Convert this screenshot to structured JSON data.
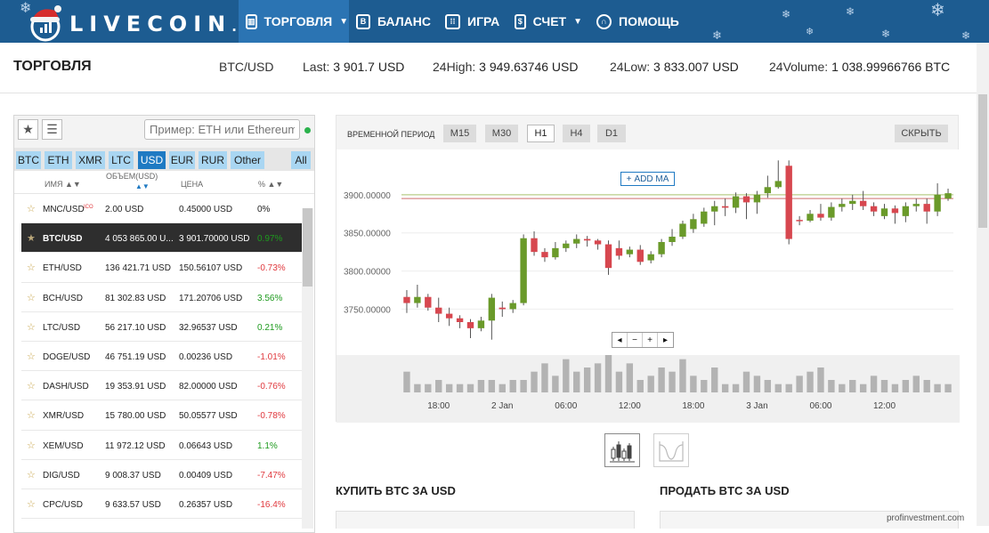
{
  "nav": {
    "logo_main": "LIVECOIN",
    "logo_suffix": ".NET",
    "items": [
      {
        "label": "ТОРГОВЛЯ",
        "icon": "chart-icon",
        "active": true
      },
      {
        "label": "БАЛАНС",
        "icon": "wallet-icon"
      },
      {
        "label": "ИГРА",
        "icon": "grid-icon"
      },
      {
        "label": "СЧЕТ",
        "icon": "account-icon"
      },
      {
        "label": "ПОМОЩЬ",
        "icon": "headset-icon"
      }
    ]
  },
  "infobar": {
    "title": "ТОРГОВЛЯ",
    "pair": "BTC/USD",
    "last_label": "Last:",
    "last_value": "3 901.7 USD",
    "high_label": "24High:",
    "high_value": "3 949.63746 USD",
    "low_label": "24Low:",
    "low_value": "3 833.007 USD",
    "volume_label": "24Volume:",
    "volume_value": "1 038.99966766 BTC"
  },
  "market": {
    "search_placeholder": "Пример: ETH или Ethereum",
    "tabs": [
      "BTC",
      "ETH",
      "XMR",
      "LTC",
      "USD",
      "EUR",
      "RUR",
      "Other",
      "All"
    ],
    "active_tab": "USD",
    "columns": {
      "name": "ИМЯ ▲▼",
      "volume": "ОБЪЕМ(USD)",
      "price": "ЦЕНА",
      "change": "% ▲▼"
    },
    "rows": [
      {
        "pair": "MNC/USD",
        "ico": "ICO",
        "volume": "2.00 USD",
        "price": "0.45000 USD",
        "change": "0%",
        "trend": "flat"
      },
      {
        "pair": "BTC/USD",
        "volume": "4 053 865.00 U...",
        "price": "3 901.70000 USD",
        "change": "0.97%",
        "trend": "pos",
        "selected": true
      },
      {
        "pair": "ETH/USD",
        "volume": "136 421.71 USD",
        "price": "150.56107 USD",
        "change": "-0.73%",
        "trend": "neg"
      },
      {
        "pair": "BCH/USD",
        "volume": "81 302.83 USD",
        "price": "171.20706 USD",
        "change": "3.56%",
        "trend": "pos"
      },
      {
        "pair": "LTC/USD",
        "volume": "56 217.10 USD",
        "price": "32.96537 USD",
        "change": "0.21%",
        "trend": "pos"
      },
      {
        "pair": "DOGE/USD",
        "volume": "46 751.19 USD",
        "price": "0.00236 USD",
        "change": "-1.01%",
        "trend": "neg"
      },
      {
        "pair": "DASH/USD",
        "volume": "19 353.91 USD",
        "price": "82.00000 USD",
        "change": "-0.76%",
        "trend": "neg"
      },
      {
        "pair": "XMR/USD",
        "volume": "15 780.00 USD",
        "price": "50.05577 USD",
        "change": "-0.78%",
        "trend": "neg"
      },
      {
        "pair": "XEM/USD",
        "volume": "11 972.12 USD",
        "price": "0.06643 USD",
        "change": "1.1%",
        "trend": "pos"
      },
      {
        "pair": "DIG/USD",
        "volume": "9 008.37 USD",
        "price": "0.00409 USD",
        "change": "-7.47%",
        "trend": "neg"
      },
      {
        "pair": "CPC/USD",
        "volume": "9 633.57 USD",
        "price": "0.26357 USD",
        "change": "-16.4%",
        "trend": "neg"
      }
    ]
  },
  "chart": {
    "period_label": "ВРЕМЕННОЙ ПЕРИОД",
    "periods": [
      "M15",
      "M30",
      "H1",
      "H4",
      "D1"
    ],
    "active_period": "H1",
    "hide_label": "СКРЫТЬ",
    "add_ma_label": "ADD MA",
    "zoom_controls": [
      "◂",
      "−",
      "+",
      "▸"
    ]
  },
  "chart_data": {
    "type": "candlestick",
    "y_ticks": [
      "3900.00000",
      "3850.00000",
      "3800.00000",
      "3750.00000"
    ],
    "y_tick_values": [
      3900,
      3850,
      3800,
      3750
    ],
    "ylim": [
      3705,
      3950
    ],
    "x_tick_labels": [
      "18:00",
      "2 Jan",
      "06:00",
      "12:00",
      "18:00",
      "3 Jan",
      "06:00",
      "12:00"
    ],
    "x_tick_index": [
      3,
      9,
      15,
      21,
      27,
      33,
      39,
      45
    ],
    "ma_levels": [
      3900,
      3895
    ],
    "candles": [
      {
        "o": 3766,
        "c": 3758,
        "h": 3775,
        "l": 3745
      },
      {
        "o": 3758,
        "c": 3766,
        "h": 3782,
        "l": 3752
      },
      {
        "o": 3766,
        "c": 3752,
        "h": 3770,
        "l": 3748
      },
      {
        "o": 3752,
        "c": 3744,
        "h": 3765,
        "l": 3733
      },
      {
        "o": 3744,
        "c": 3738,
        "h": 3752,
        "l": 3728
      },
      {
        "o": 3738,
        "c": 3733,
        "h": 3742,
        "l": 3725
      },
      {
        "o": 3733,
        "c": 3725,
        "h": 3737,
        "l": 3712
      },
      {
        "o": 3725,
        "c": 3735,
        "h": 3740,
        "l": 3721
      },
      {
        "o": 3735,
        "c": 3765,
        "h": 3770,
        "l": 3710
      },
      {
        "o": 3752,
        "c": 3750,
        "h": 3760,
        "l": 3740
      },
      {
        "o": 3750,
        "c": 3758,
        "h": 3762,
        "l": 3745
      },
      {
        "o": 3758,
        "c": 3843,
        "h": 3848,
        "l": 3755
      },
      {
        "o": 3843,
        "c": 3825,
        "h": 3852,
        "l": 3820
      },
      {
        "o": 3825,
        "c": 3818,
        "h": 3830,
        "l": 3812
      },
      {
        "o": 3818,
        "c": 3830,
        "h": 3838,
        "l": 3815
      },
      {
        "o": 3830,
        "c": 3836,
        "h": 3840,
        "l": 3825
      },
      {
        "o": 3836,
        "c": 3842,
        "h": 3848,
        "l": 3830
      },
      {
        "o": 3842,
        "c": 3840,
        "h": 3846,
        "l": 3832
      },
      {
        "o": 3840,
        "c": 3835,
        "h": 3842,
        "l": 3828
      },
      {
        "o": 3835,
        "c": 3804,
        "h": 3840,
        "l": 3795
      },
      {
        "o": 3830,
        "c": 3820,
        "h": 3840,
        "l": 3815
      },
      {
        "o": 3822,
        "c": 3828,
        "h": 3832,
        "l": 3818
      },
      {
        "o": 3828,
        "c": 3812,
        "h": 3834,
        "l": 3808
      },
      {
        "o": 3814,
        "c": 3822,
        "h": 3826,
        "l": 3810
      },
      {
        "o": 3822,
        "c": 3838,
        "h": 3842,
        "l": 3818
      },
      {
        "o": 3838,
        "c": 3845,
        "h": 3855,
        "l": 3833
      },
      {
        "o": 3845,
        "c": 3862,
        "h": 3866,
        "l": 3842
      },
      {
        "o": 3855,
        "c": 3868,
        "h": 3875,
        "l": 3850
      },
      {
        "o": 3862,
        "c": 3878,
        "h": 3883,
        "l": 3858
      },
      {
        "o": 3878,
        "c": 3885,
        "h": 3892,
        "l": 3860
      },
      {
        "o": 3885,
        "c": 3883,
        "h": 3895,
        "l": 3872
      },
      {
        "o": 3883,
        "c": 3898,
        "h": 3903,
        "l": 3876
      },
      {
        "o": 3898,
        "c": 3890,
        "h": 3902,
        "l": 3868
      },
      {
        "o": 3890,
        "c": 3900,
        "h": 3905,
        "l": 3875
      },
      {
        "o": 3902,
        "c": 3910,
        "h": 3925,
        "l": 3896
      },
      {
        "o": 3910,
        "c": 3918,
        "h": 3945,
        "l": 3908
      },
      {
        "o": 3938,
        "c": 3842,
        "h": 3945,
        "l": 3835
      },
      {
        "o": 3867,
        "c": 3866,
        "h": 3872,
        "l": 3860
      },
      {
        "o": 3866,
        "c": 3875,
        "h": 3880,
        "l": 3864
      },
      {
        "o": 3875,
        "c": 3870,
        "h": 3888,
        "l": 3866
      },
      {
        "o": 3870,
        "c": 3884,
        "h": 3890,
        "l": 3866
      },
      {
        "o": 3884,
        "c": 3888,
        "h": 3895,
        "l": 3878
      },
      {
        "o": 3888,
        "c": 3892,
        "h": 3900,
        "l": 3880
      },
      {
        "o": 3892,
        "c": 3885,
        "h": 3905,
        "l": 3880
      },
      {
        "o": 3885,
        "c": 3878,
        "h": 3890,
        "l": 3872
      },
      {
        "o": 3872,
        "c": 3882,
        "h": 3888,
        "l": 3868
      },
      {
        "o": 3882,
        "c": 3876,
        "h": 3886,
        "l": 3862
      },
      {
        "o": 3872,
        "c": 3885,
        "h": 3890,
        "l": 3864
      },
      {
        "o": 3885,
        "c": 3888,
        "h": 3895,
        "l": 3878
      },
      {
        "o": 3888,
        "c": 3878,
        "h": 3895,
        "l": 3862
      },
      {
        "o": 3878,
        "c": 3900,
        "h": 3915,
        "l": 3872
      },
      {
        "o": 3895,
        "c": 3902,
        "h": 3908,
        "l": 3892
      }
    ],
    "volumes": [
      5,
      2,
      2,
      3,
      2,
      2,
      2,
      3,
      3,
      2,
      3,
      3,
      5,
      7,
      4,
      8,
      5,
      6,
      7,
      9,
      5,
      7,
      3,
      4,
      6,
      5,
      8,
      4,
      3,
      6,
      2,
      2,
      5,
      4,
      3,
      2,
      2,
      4,
      5,
      6,
      3,
      2,
      3,
      2,
      4,
      3,
      2,
      3,
      4,
      3,
      2,
      2
    ]
  },
  "views": [
    {
      "name": "candles-view-icon",
      "active": true
    },
    {
      "name": "depth-view-icon",
      "active": false
    }
  ],
  "trade": {
    "buy_title": "КУПИТЬ BTC ЗА USD",
    "sell_title": "ПРОДАТЬ BTC ЗА USD"
  },
  "watermark": "profinvestment.com",
  "colors": {
    "nav_bg": "#1d5c91",
    "nav_active": "#2b74b3",
    "tab_active": "#1f7ac3",
    "candle_up": "#6a9a2a",
    "candle_down": "#d7474f",
    "positive": "#1e9a1e",
    "negative": "#e0393e"
  }
}
